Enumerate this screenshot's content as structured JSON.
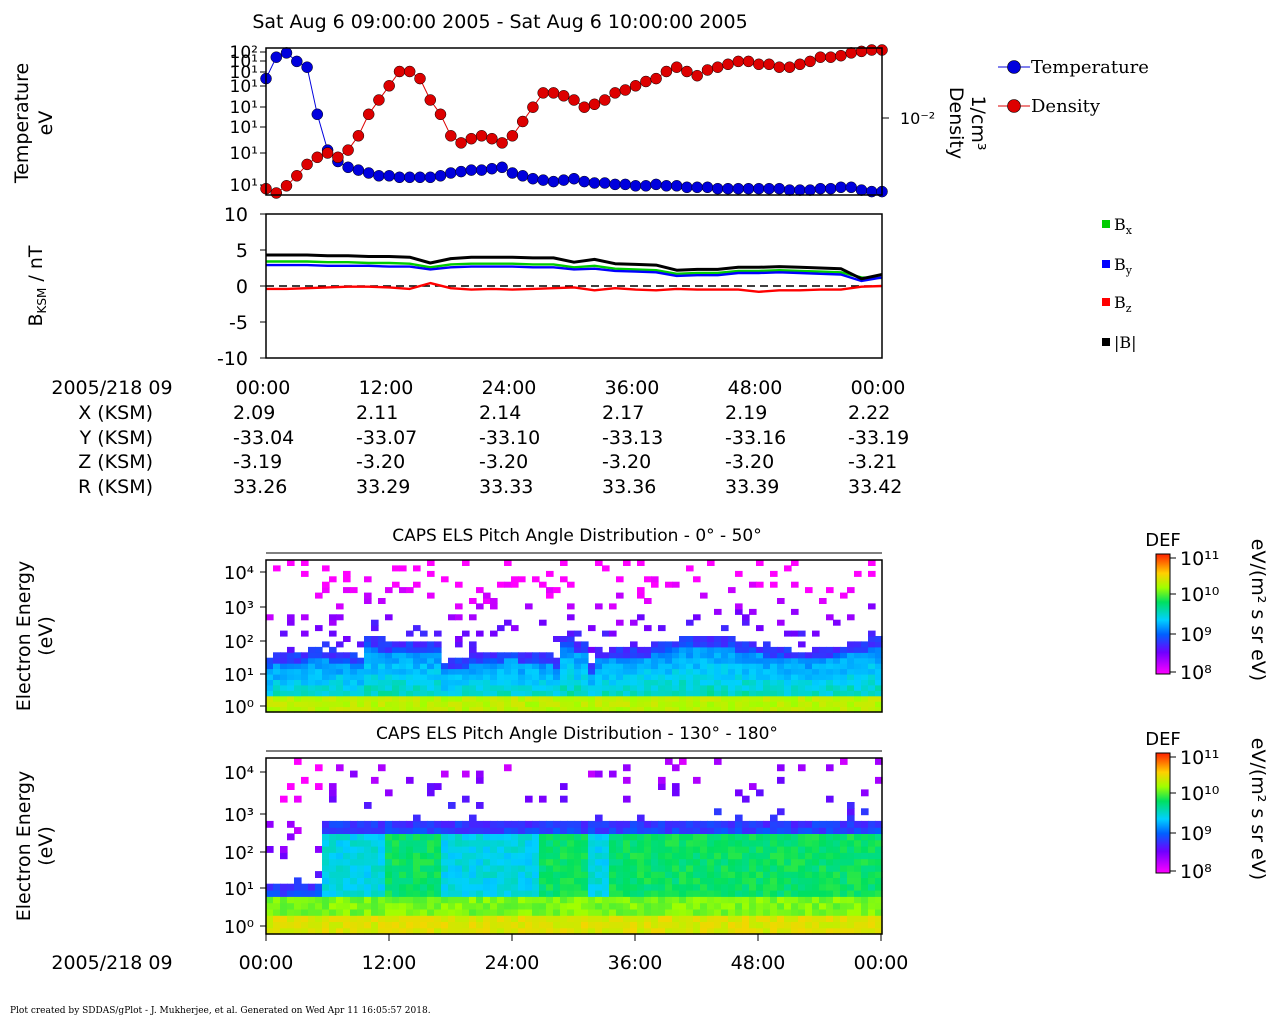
{
  "title": "Sat Aug 6 09:00:00 2005 - Sat Aug 6 10:00:00 2005",
  "colors": {
    "temperature": "#0000dd",
    "density": "#dd0000",
    "bx": "#00cc00",
    "by": "#0000ff",
    "bz": "#ff0000",
    "btot": "#000000"
  },
  "chart_data": [
    {
      "type": "line",
      "ylabel": [
        "Temperature",
        "eV"
      ],
      "y2label": [
        "Density",
        "1/cm³"
      ],
      "y_scale": "log",
      "y_tick_labels": [
        "10²",
        "10¹",
        "10¹",
        "10¹",
        "10¹",
        "10¹",
        "10¹",
        "10¹"
      ],
      "y2_tick_label": "10⁻²",
      "legend": {
        "placement": "right",
        "entries": [
          "Temperature",
          "Density"
        ]
      },
      "x_minutes": [
        0,
        1,
        2,
        3,
        4,
        5,
        6,
        7,
        8,
        9,
        10,
        11,
        12,
        13,
        14,
        15,
        16,
        17,
        18,
        19,
        20,
        21,
        22,
        23,
        24,
        25,
        26,
        27,
        28,
        29,
        30,
        31,
        32,
        33,
        34,
        35,
        36,
        37,
        38,
        39,
        40,
        41,
        42,
        43,
        44,
        45,
        46,
        47,
        48,
        49,
        50,
        51,
        52,
        53,
        54,
        55,
        56,
        57,
        58,
        59,
        60
      ],
      "series": [
        {
          "name": "Temperature",
          "values": [
            80,
            95,
            98,
            92,
            88,
            55,
            30,
            22,
            18,
            16,
            14,
            12,
            12,
            11,
            11,
            11,
            11,
            12,
            14,
            15,
            16,
            16,
            17,
            18,
            14,
            12,
            10,
            9,
            8,
            9,
            10,
            8,
            7,
            7,
            6,
            6,
            5,
            5,
            6,
            5,
            5,
            4,
            4,
            4,
            3,
            3,
            3,
            3,
            3,
            3,
            3,
            2,
            2,
            2,
            3,
            3,
            4,
            4,
            2,
            1,
            1
          ]
        },
        {
          "name": "Density",
          "values": [
            3,
            0,
            5,
            12,
            20,
            25,
            28,
            25,
            30,
            40,
            55,
            65,
            75,
            85,
            85,
            80,
            65,
            55,
            40,
            35,
            38,
            40,
            38,
            35,
            40,
            50,
            60,
            70,
            70,
            68,
            65,
            60,
            62,
            65,
            70,
            72,
            75,
            78,
            80,
            85,
            88,
            85,
            82,
            86,
            88,
            90,
            92,
            92,
            90,
            90,
            88,
            88,
            90,
            92,
            95,
            95,
            96,
            98,
            99,
            100,
            100
          ]
        }
      ]
    },
    {
      "type": "line",
      "ylabel": "BKSM / nT",
      "ylim": [
        -10,
        10
      ],
      "y_ticks": [
        10,
        5,
        0,
        -5,
        -10
      ],
      "legend": {
        "placement": "right",
        "entries": [
          "Bx",
          "By",
          "Bz",
          "|B|"
        ]
      },
      "x_minutes": [
        0,
        2,
        4,
        6,
        8,
        10,
        12,
        14,
        16,
        18,
        20,
        22,
        24,
        26,
        28,
        30,
        32,
        34,
        36,
        38,
        40,
        42,
        44,
        46,
        48,
        50,
        52,
        54,
        56,
        58,
        60
      ],
      "series": [
        {
          "name": "Bx",
          "values": [
            3.4,
            3.4,
            3.4,
            3.3,
            3.3,
            3.2,
            3.2,
            3.1,
            2.6,
            3.0,
            3.1,
            3.1,
            3.1,
            3.0,
            3.0,
            2.6,
            2.8,
            2.4,
            2.3,
            2.2,
            1.7,
            1.8,
            1.8,
            2.1,
            2.1,
            2.2,
            2.1,
            2.0,
            1.9,
            1.2,
            1.1
          ]
        },
        {
          "name": "By",
          "values": [
            2.9,
            2.9,
            2.9,
            2.8,
            2.8,
            2.8,
            2.7,
            2.7,
            2.3,
            2.6,
            2.7,
            2.7,
            2.7,
            2.6,
            2.6,
            2.3,
            2.4,
            2.1,
            2.0,
            1.9,
            1.4,
            1.5,
            1.5,
            1.8,
            1.8,
            1.9,
            1.8,
            1.7,
            1.6,
            0.7,
            1.2
          ]
        },
        {
          "name": "Bz",
          "values": [
            -0.4,
            -0.4,
            -0.3,
            -0.2,
            -0.1,
            -0.1,
            -0.2,
            -0.4,
            0.4,
            -0.3,
            -0.5,
            -0.4,
            -0.5,
            -0.4,
            -0.3,
            -0.2,
            -0.6,
            -0.3,
            -0.5,
            -0.6,
            -0.4,
            -0.5,
            -0.5,
            -0.5,
            -0.8,
            -0.6,
            -0.6,
            -0.5,
            -0.5,
            -0.1,
            0.0
          ]
        },
        {
          "name": "|B|",
          "values": [
            4.3,
            4.3,
            4.3,
            4.2,
            4.2,
            4.1,
            4.1,
            4.0,
            3.2,
            3.8,
            4.0,
            4.0,
            4.0,
            3.9,
            3.9,
            3.3,
            3.7,
            3.1,
            3.0,
            2.9,
            2.2,
            2.3,
            2.3,
            2.6,
            2.6,
            2.7,
            2.6,
            2.5,
            2.4,
            1.0,
            1.6
          ]
        }
      ]
    },
    {
      "type": "heatmap",
      "title": "CAPS ELS Pitch Angle Distribution - 0° - 50°",
      "ylabel": [
        "Electron Energy",
        "(eV)"
      ],
      "y_scale": "log",
      "y_tick_labels": [
        "10⁴",
        "10³",
        "10²",
        "10¹",
        "10⁰"
      ],
      "colorbar": {
        "label": "DEF",
        "units": "eV/(m² s sr eV)",
        "tick_labels": [
          "10¹¹",
          "10¹⁰",
          "10⁹",
          "10⁸"
        ]
      }
    },
    {
      "type": "heatmap",
      "title": "CAPS ELS Pitch Angle Distribution - 130° - 180°",
      "ylabel": [
        "Electron Energy",
        "(eV)"
      ],
      "y_scale": "log",
      "y_tick_labels": [
        "10⁴",
        "10³",
        "10²",
        "10¹",
        "10⁰"
      ],
      "colorbar": {
        "label": "DEF",
        "units": "eV/(m² s sr eV)",
        "tick_labels": [
          "10¹¹",
          "10¹⁰",
          "10⁹",
          "10⁸"
        ]
      }
    }
  ],
  "ephemeris": {
    "time_header": "2005/218 09",
    "time_ticks": [
      "00:00",
      "12:00",
      "24:00",
      "36:00",
      "48:00",
      "00:00"
    ],
    "rows": [
      {
        "label": "X (KSM)",
        "values": [
          "2.09",
          "2.11",
          "2.14",
          "2.17",
          "2.19",
          "2.22"
        ]
      },
      {
        "label": "Y (KSM)",
        "values": [
          "-33.04",
          "-33.07",
          "-33.10",
          "-33.13",
          "-33.16",
          "-33.19"
        ]
      },
      {
        "label": "Z (KSM)",
        "values": [
          "-3.19",
          "-3.20",
          "-3.20",
          "-3.20",
          "-3.20",
          "-3.21"
        ]
      },
      {
        "label": "R (KSM)",
        "values": [
          "33.26",
          "33.29",
          "33.33",
          "33.36",
          "33.39",
          "33.42"
        ]
      }
    ]
  },
  "bottom_axis": {
    "time_header": "2005/218 09",
    "time_ticks": [
      "00:00",
      "12:00",
      "24:00",
      "36:00",
      "48:00",
      "00:00"
    ]
  },
  "footer": "Plot created by SDDAS/gPlot - J. Mukherjee, et al.  Generated on Wed Apr 11 16:05:57 2018."
}
